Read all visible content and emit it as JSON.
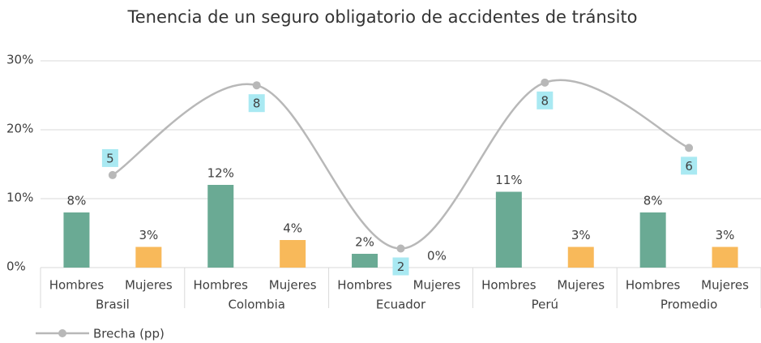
{
  "chart_data": {
    "type": "bar",
    "title": "Tenencia de un seguro obligatorio de accidentes de tránsito",
    "categories": [
      "Brasil",
      "Colombia",
      "Ecuador",
      "Perú",
      "Promedio"
    ],
    "series": [
      {
        "name": "Hombres",
        "color": "#6aaa94",
        "values": [
          8,
          12,
          2,
          11,
          8
        ],
        "value_labels": [
          "8%",
          "12%",
          "2%",
          "11%",
          "8%"
        ]
      },
      {
        "name": "Mujeres",
        "color": "#f8b95a",
        "values": [
          3,
          4,
          0,
          3,
          3
        ],
        "value_labels": [
          "3%",
          "4%",
          "0%",
          "3%",
          "3%"
        ]
      },
      {
        "name": "Brecha (pp)",
        "type": "line",
        "axis": "y2",
        "color": "#b8b8b8",
        "label_color": "#a9e9f2",
        "values": [
          4.6,
          7.9,
          1.9,
          8.0,
          5.6
        ],
        "value_labels": [
          "5",
          "8",
          "2",
          "8",
          "6"
        ]
      }
    ],
    "ylim": [
      0,
      30
    ],
    "yticks": [
      {
        "value": 0,
        "label": "0%"
      },
      {
        "value": 10,
        "label": "10%"
      },
      {
        "value": 20,
        "label": "20%"
      },
      {
        "value": 30,
        "label": "30%"
      }
    ],
    "y2lim": [
      1.2,
      8.8
    ],
    "grid": true,
    "legend": "bottom-left"
  }
}
